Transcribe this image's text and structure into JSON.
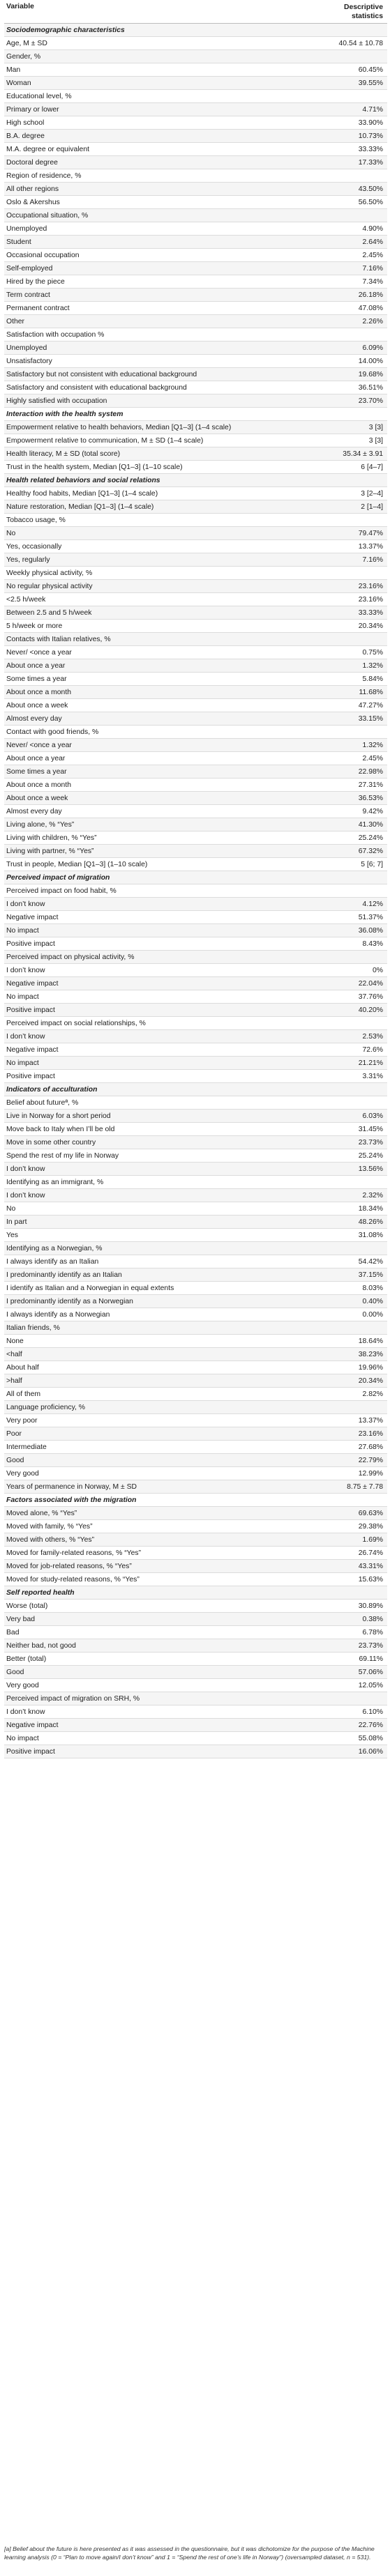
{
  "header": {
    "variable": "Variable",
    "stats": "Descriptive statistics"
  },
  "rows": [
    {
      "t": "s",
      "l": "Sociodemographic characteristics",
      "v": ""
    },
    {
      "t": "r",
      "l": "Age, M ± SD",
      "v": "40.54 ± 10.78"
    },
    {
      "t": "r",
      "l": "Gender, %",
      "v": ""
    },
    {
      "t": "r",
      "l": "Man",
      "v": "60.45%"
    },
    {
      "t": "r",
      "l": "Woman",
      "v": "39.55%"
    },
    {
      "t": "r",
      "l": "Educational level, %",
      "v": ""
    },
    {
      "t": "r",
      "l": "Primary or lower",
      "v": "4.71%"
    },
    {
      "t": "r",
      "l": "High school",
      "v": "33.90%"
    },
    {
      "t": "r",
      "l": "B.A. degree",
      "v": "10.73%"
    },
    {
      "t": "r",
      "l": "M.A. degree or equivalent",
      "v": "33.33%"
    },
    {
      "t": "r",
      "l": "Doctoral degree",
      "v": "17.33%"
    },
    {
      "t": "r",
      "l": "Region of residence, %",
      "v": ""
    },
    {
      "t": "r",
      "l": "All other regions",
      "v": "43.50%"
    },
    {
      "t": "r",
      "l": "Oslo & Akershus",
      "v": "56.50%"
    },
    {
      "t": "r",
      "l": "Occupational situation, %",
      "v": ""
    },
    {
      "t": "r",
      "l": "Unemployed",
      "v": "4.90%"
    },
    {
      "t": "r",
      "l": "Student",
      "v": "2.64%"
    },
    {
      "t": "r",
      "l": "Occasional occupation",
      "v": "2.45%"
    },
    {
      "t": "r",
      "l": "Self-employed",
      "v": "7.16%"
    },
    {
      "t": "r",
      "l": "Hired by the piece",
      "v": "7.34%"
    },
    {
      "t": "r",
      "l": "Term contract",
      "v": "26.18%"
    },
    {
      "t": "r",
      "l": "Permanent contract",
      "v": "47.08%"
    },
    {
      "t": "r",
      "l": "Other",
      "v": "2.26%"
    },
    {
      "t": "r",
      "l": "Satisfaction with occupation %",
      "v": ""
    },
    {
      "t": "r",
      "l": "Unemployed",
      "v": "6.09%"
    },
    {
      "t": "r",
      "l": "Unsatisfactory",
      "v": "14.00%"
    },
    {
      "t": "r",
      "l": "Satisfactory but not consistent with educational background",
      "v": "19.68%"
    },
    {
      "t": "r",
      "l": "Satisfactory and consistent with educational background",
      "v": "36.51%"
    },
    {
      "t": "r",
      "l": "Highly satisfied with occupation",
      "v": "23.70%"
    },
    {
      "t": "s",
      "l": "Interaction with the health system",
      "v": ""
    },
    {
      "t": "r",
      "l": "Empowerment relative to health behaviors, Median [Q1–3] (1–4 scale)",
      "v": "3 [3]"
    },
    {
      "t": "r",
      "l": "Empowerment relative to communication, M ± SD (1–4 scale)",
      "v": "3 [3]"
    },
    {
      "t": "r",
      "l": "Health literacy, M ± SD (total score)",
      "v": "35.34 ± 3.91"
    },
    {
      "t": "r",
      "l": "Trust in the health system, Median [Q1–3] (1–10 scale)",
      "v": "6 [4–7]"
    },
    {
      "t": "s",
      "l": "Health related behaviors and social relations",
      "v": ""
    },
    {
      "t": "r",
      "l": "Healthy food habits, Median [Q1–3] (1–4 scale)",
      "v": "3 [2–4]"
    },
    {
      "t": "r",
      "l": "Nature restoration, Median [Q1–3] (1–4 scale)",
      "v": "2 [1–4]"
    },
    {
      "t": "r",
      "l": "Tobacco usage, %",
      "v": ""
    },
    {
      "t": "r",
      "l": "No",
      "v": "79.47%"
    },
    {
      "t": "r",
      "l": "Yes, occasionally",
      "v": "13.37%"
    },
    {
      "t": "r",
      "l": "Yes, regularly",
      "v": "7.16%"
    },
    {
      "t": "r",
      "l": "Weekly physical activity, %",
      "v": ""
    },
    {
      "t": "r",
      "l": "No regular physical activity",
      "v": "23.16%"
    },
    {
      "t": "r",
      "l": "<2.5 h/week",
      "v": "23.16%"
    },
    {
      "t": "r",
      "l": "Between 2.5 and 5 h/week",
      "v": "33.33%"
    },
    {
      "t": "r",
      "l": "5 h/week or more",
      "v": "20.34%"
    },
    {
      "t": "r",
      "l": "Contacts with Italian relatives, %",
      "v": ""
    },
    {
      "t": "r",
      "l": "Never/ <once a year",
      "v": "0.75%"
    },
    {
      "t": "r",
      "l": "About once a year",
      "v": "1.32%"
    },
    {
      "t": "r",
      "l": "Some times a year",
      "v": "5.84%"
    },
    {
      "t": "r",
      "l": "About once a month",
      "v": "11.68%"
    },
    {
      "t": "r",
      "l": "About once a week",
      "v": "47.27%"
    },
    {
      "t": "r",
      "l": "Almost every day",
      "v": "33.15%"
    },
    {
      "t": "r",
      "l": "Contact with good friends, %",
      "v": ""
    },
    {
      "t": "r",
      "l": "Never/ <once a year",
      "v": "1.32%"
    },
    {
      "t": "r",
      "l": "About once a year",
      "v": "2.45%"
    },
    {
      "t": "r",
      "l": "Some times a year",
      "v": "22.98%"
    },
    {
      "t": "r",
      "l": "About once a month",
      "v": "27.31%"
    },
    {
      "t": "r",
      "l": "About once a week",
      "v": "36.53%"
    },
    {
      "t": "r",
      "l": "Almost every day",
      "v": "9.42%"
    },
    {
      "t": "r",
      "l": "Living alone, % “Yes”",
      "v": "41.30%"
    },
    {
      "t": "r",
      "l": "Living with children, % “Yes”",
      "v": "25.24%"
    },
    {
      "t": "r",
      "l": "Living with partner, % “Yes”",
      "v": "67.32%"
    },
    {
      "t": "r",
      "l": "Trust in people, Median [Q1–3] (1–10 scale)",
      "v": "5 [6; 7]"
    },
    {
      "t": "s",
      "l": "Perceived impact of migration",
      "v": ""
    },
    {
      "t": "r",
      "l": "Perceived impact on food habit, %",
      "v": ""
    },
    {
      "t": "r",
      "l": "I don’t know",
      "v": "4.12%"
    },
    {
      "t": "r",
      "l": "Negative impact",
      "v": "51.37%"
    },
    {
      "t": "r",
      "l": "No impact",
      "v": "36.08%"
    },
    {
      "t": "r",
      "l": "Positive impact",
      "v": "8.43%"
    },
    {
      "t": "r",
      "l": "Perceived impact on physical activity, %",
      "v": ""
    },
    {
      "t": "r",
      "l": "I don’t know",
      "v": "0%"
    },
    {
      "t": "r",
      "l": "Negative impact",
      "v": "22.04%"
    },
    {
      "t": "r",
      "l": "No impact",
      "v": "37.76%"
    },
    {
      "t": "r",
      "l": "Positive impact",
      "v": "40.20%"
    },
    {
      "t": "r",
      "l": "Perceived impact on social relationships, %",
      "v": ""
    },
    {
      "t": "r",
      "l": "I don’t know",
      "v": "2.53%"
    },
    {
      "t": "r",
      "l": "Negative impact",
      "v": "72.6%"
    },
    {
      "t": "r",
      "l": "No impact",
      "v": "21.21%"
    },
    {
      "t": "r",
      "l": "Positive impact",
      "v": "3.31%"
    },
    {
      "t": "s",
      "l": "Indicators of acculturation",
      "v": ""
    },
    {
      "t": "r",
      "l": "Belief about futureª, %",
      "v": ""
    },
    {
      "t": "r",
      "l": "Live in Norway for a short period",
      "v": "6.03%"
    },
    {
      "t": "r",
      "l": "Move back to Italy when I’ll be old",
      "v": "31.45%"
    },
    {
      "t": "r",
      "l": "Move in some other country",
      "v": "23.73%"
    },
    {
      "t": "r",
      "l": "Spend the rest of my life in Norway",
      "v": "25.24%"
    },
    {
      "t": "r",
      "l": "I don’t know",
      "v": "13.56%"
    },
    {
      "t": "r",
      "l": "Identifying as an immigrant, %",
      "v": ""
    },
    {
      "t": "r",
      "l": "I don’t know",
      "v": "2.32%"
    },
    {
      "t": "r",
      "l": "No",
      "v": "18.34%"
    },
    {
      "t": "r",
      "l": "In part",
      "v": "48.26%"
    },
    {
      "t": "r",
      "l": "Yes",
      "v": "31.08%"
    },
    {
      "t": "r",
      "l": "Identifying as a Norwegian, %",
      "v": ""
    },
    {
      "t": "r",
      "l": "I always identify as an Italian",
      "v": "54.42%"
    },
    {
      "t": "r",
      "l": "I predominantly identify as an Italian",
      "v": "37.15%"
    },
    {
      "t": "r",
      "l": "I identify as Italian and a Norwegian in equal extents",
      "v": "8.03%"
    },
    {
      "t": "r",
      "l": "I predominantly identify as a Norwegian",
      "v": "0.40%"
    },
    {
      "t": "r",
      "l": "I always identify as a Norwegian",
      "v": "0.00%"
    },
    {
      "t": "r",
      "l": "Italian friends, %",
      "v": ""
    },
    {
      "t": "r",
      "l": "None",
      "v": "18.64%"
    },
    {
      "t": "r",
      "l": "<half",
      "v": "38.23%"
    },
    {
      "t": "r",
      "l": "About half",
      "v": "19.96%"
    },
    {
      "t": "r",
      "l": ">half",
      "v": "20.34%"
    },
    {
      "t": "r",
      "l": "All of them",
      "v": "2.82%"
    },
    {
      "t": "r",
      "l": "Language proficiency, %",
      "v": ""
    },
    {
      "t": "r",
      "l": "Very poor",
      "v": "13.37%"
    },
    {
      "t": "r",
      "l": "Poor",
      "v": "23.16%"
    },
    {
      "t": "r",
      "l": "Intermediate",
      "v": "27.68%"
    },
    {
      "t": "r",
      "l": "Good",
      "v": "22.79%"
    },
    {
      "t": "r",
      "l": "Very good",
      "v": "12.99%"
    },
    {
      "t": "r",
      "l": "Years of permanence in Norway, M ± SD",
      "v": "8.75 ± 7.78"
    },
    {
      "t": "s",
      "l": "Factors associated with the migration",
      "v": ""
    },
    {
      "t": "r",
      "l": "Moved alone, % “Yes”",
      "v": "69.63%"
    },
    {
      "t": "r",
      "l": "Moved with family, % “Yes”",
      "v": "29.38%"
    },
    {
      "t": "r",
      "l": "Moved with others, % “Yes”",
      "v": "1.69%"
    },
    {
      "t": "r",
      "l": "Moved for family-related reasons, % “Yes”",
      "v": "26.74%"
    },
    {
      "t": "r",
      "l": "Moved for job-related reasons, % “Yes”",
      "v": "43.31%"
    },
    {
      "t": "r",
      "l": "Moved for study-related reasons, % “Yes”",
      "v": "15.63%"
    },
    {
      "t": "s",
      "l": "Self reported health",
      "v": ""
    },
    {
      "t": "r",
      "l": "Worse (total)",
      "v": "30.89%"
    },
    {
      "t": "r",
      "l": "Very bad",
      "v": "0.38%"
    },
    {
      "t": "r",
      "l": "Bad",
      "v": "6.78%"
    },
    {
      "t": "r",
      "l": "Neither bad, not good",
      "v": "23.73%"
    },
    {
      "t": "r",
      "l": "Better (total)",
      "v": "69.11%"
    },
    {
      "t": "r",
      "l": "Good",
      "v": "57.06%"
    },
    {
      "t": "r",
      "l": "Very good",
      "v": "12.05%"
    },
    {
      "t": "r",
      "l": "Perceived impact of migration on SRH, %",
      "v": ""
    },
    {
      "t": "r",
      "l": "I don’t know",
      "v": "6.10%"
    },
    {
      "t": "r",
      "l": "Negative impact",
      "v": "22.76%"
    },
    {
      "t": "r",
      "l": "No impact",
      "v": "55.08%"
    },
    {
      "t": "r",
      "l": "Positive impact",
      "v": "16.06%"
    }
  ],
  "footnote": "[a] Belief about the future is here presented as it was assessed in the questionnaire, but it was dichotomize for the purpose of the Machine learning analysis (0 = “Plan to move again/I don’t know” and 1 = “Spend the rest of one’s life in Norway”) (oversampled dataset, n = 531)."
}
